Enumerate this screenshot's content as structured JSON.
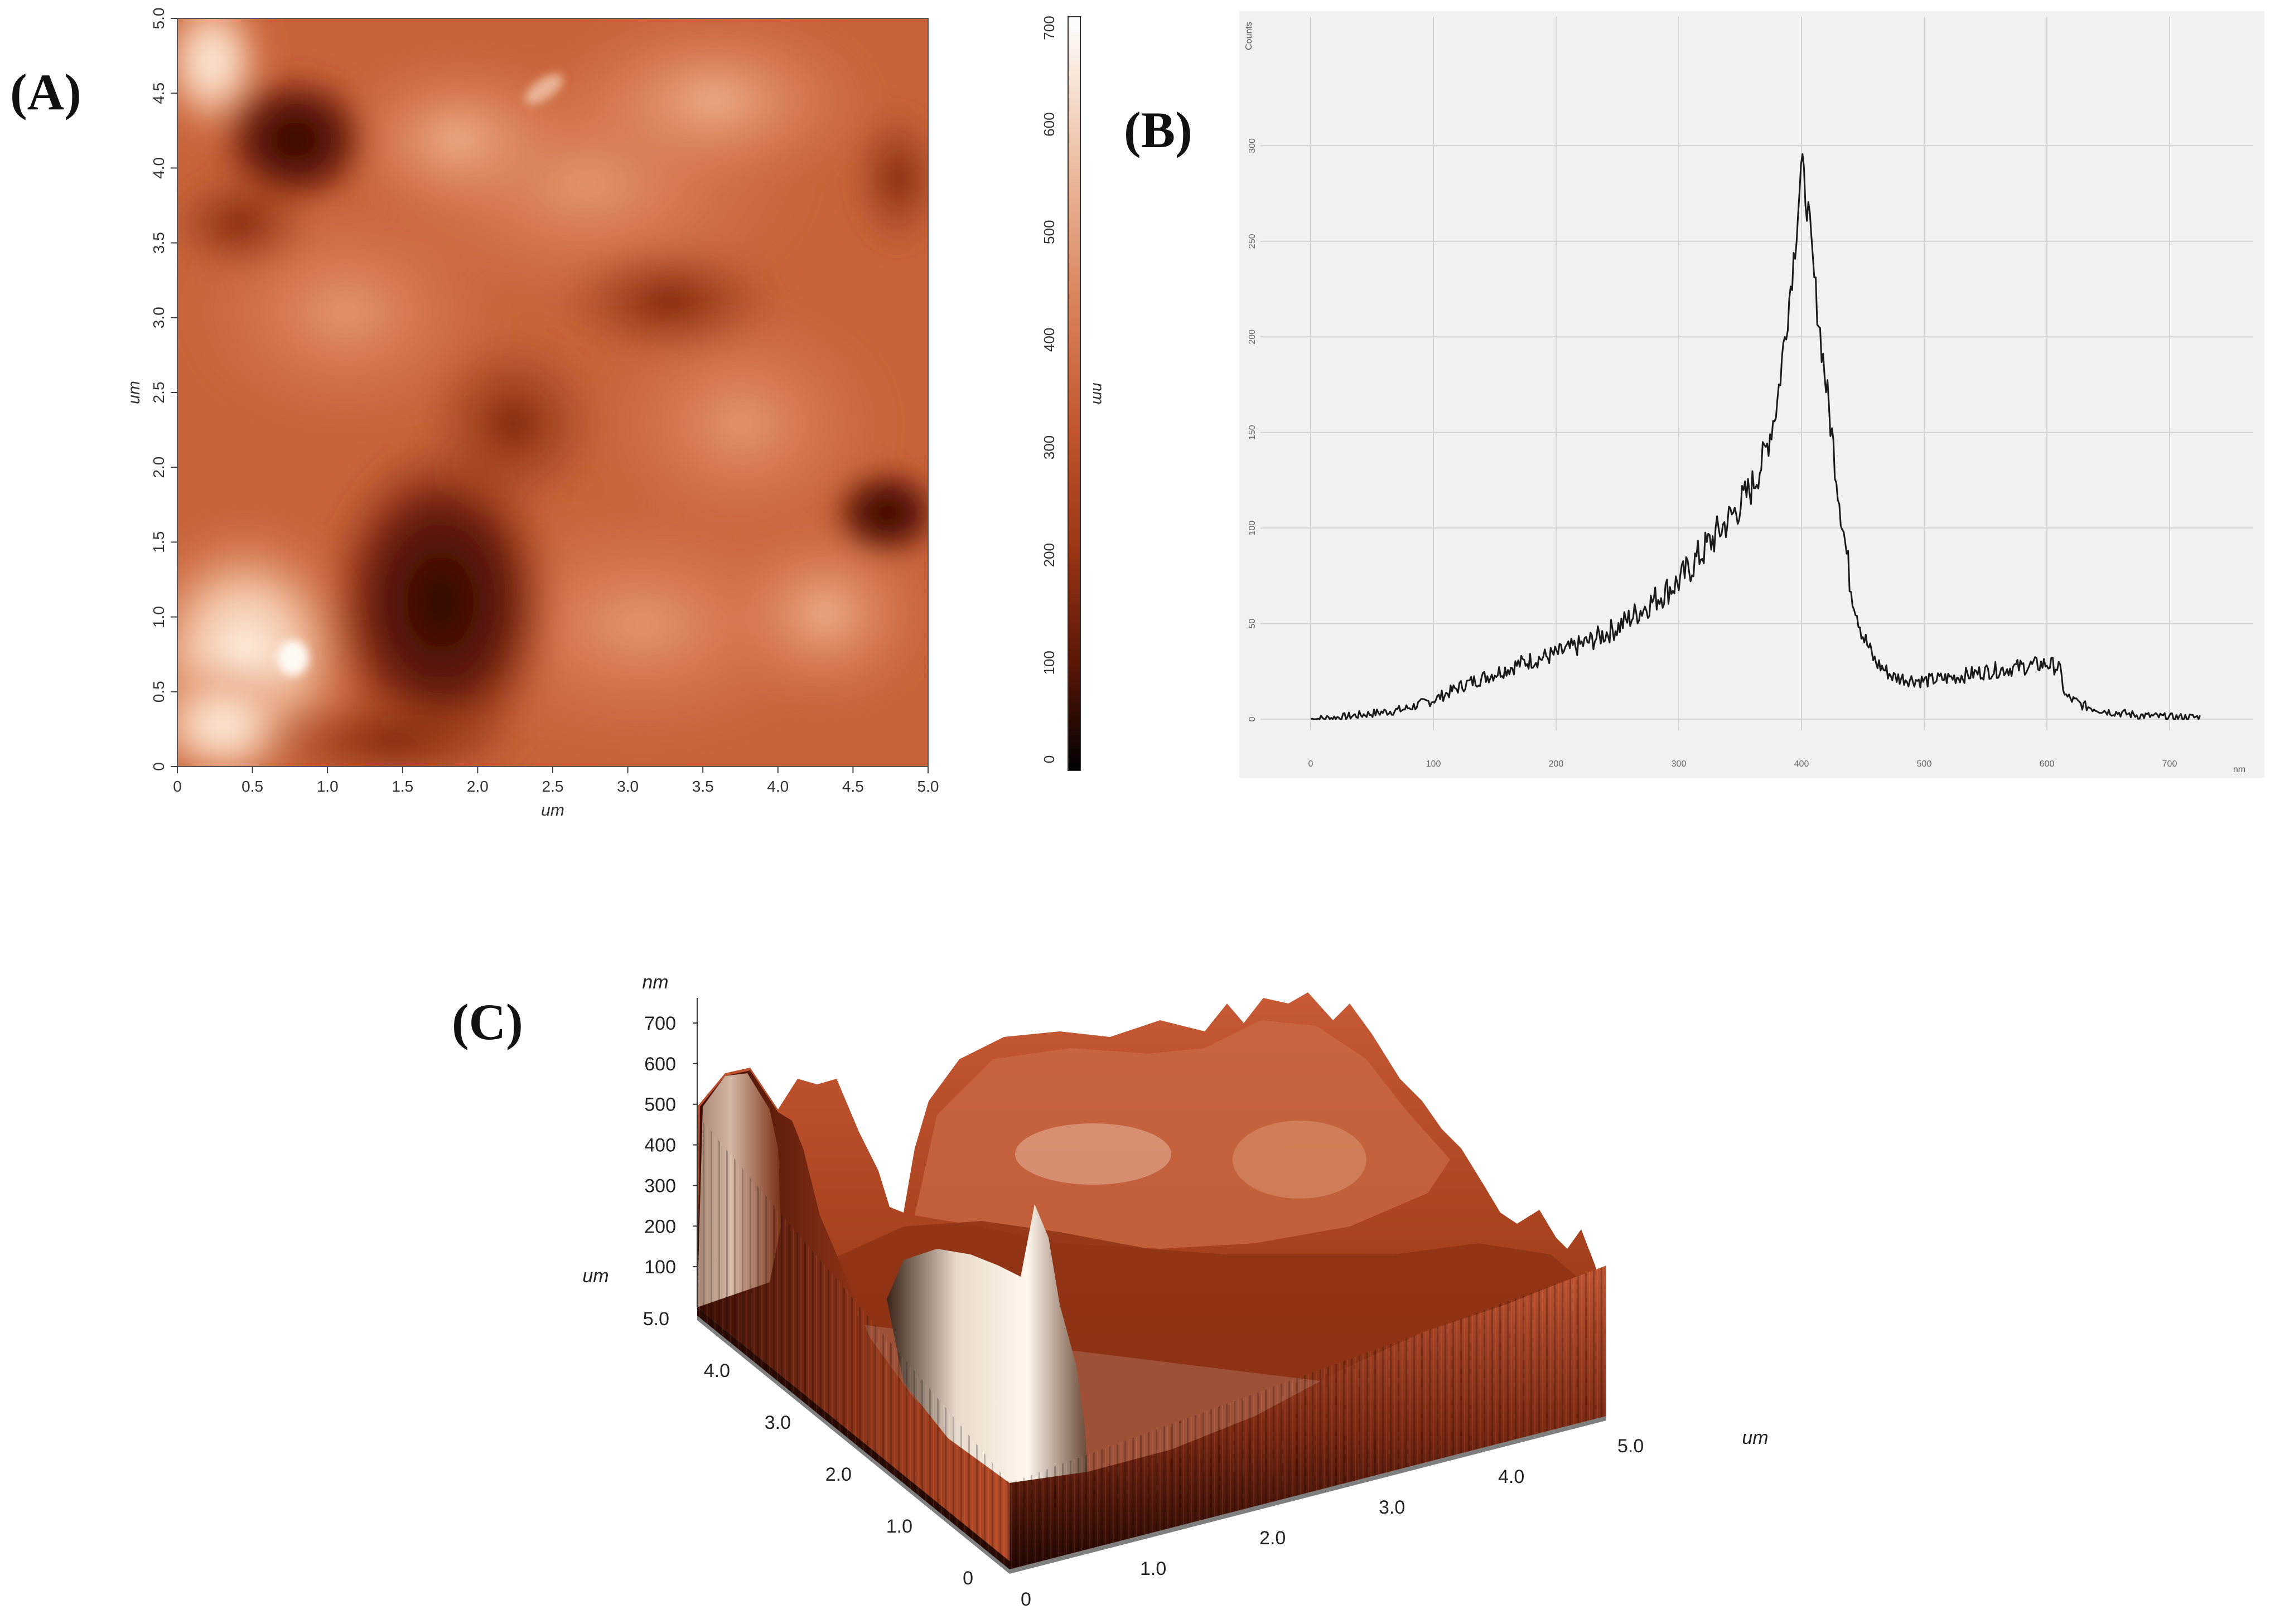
{
  "panels": {
    "a_label": "(A)",
    "b_label": "(B)",
    "c_label": "(C)"
  },
  "chart_data": [
    {
      "type": "heatmap",
      "panel": "A",
      "xlabel": "um",
      "ylabel": "um",
      "xlim": [
        0,
        5.0
      ],
      "ylim": [
        0,
        5.0
      ],
      "x_ticks": [
        "0",
        "0.5",
        "1.0",
        "1.5",
        "2.0",
        "2.5",
        "3.0",
        "3.5",
        "4.0",
        "4.5",
        "5.0"
      ],
      "y_ticks": [
        "0",
        "0.5",
        "1.0",
        "1.5",
        "2.0",
        "2.5",
        "3.0",
        "3.5",
        "4.0",
        "4.5",
        "5.0"
      ],
      "colorbar": {
        "label": "nm",
        "range": [
          0,
          700
        ],
        "ticks": [
          "0",
          "100",
          "200",
          "300",
          "400",
          "500",
          "600",
          "700"
        ],
        "colors": [
          "#000000",
          "#5a1606",
          "#9d3716",
          "#c2552c",
          "#d8825a",
          "#eab597",
          "#f8e6d8",
          "#ffffff"
        ]
      },
      "grid": false
    },
    {
      "type": "line",
      "panel": "B",
      "ylabel": "Counts",
      "xlabel": "nm",
      "xlim": [
        0,
        750
      ],
      "ylim": [
        0,
        350
      ],
      "x_ticks": [
        "0",
        "100",
        "200",
        "300",
        "400",
        "500",
        "600",
        "700"
      ],
      "y_ticks": [
        "0",
        "50",
        "100",
        "150",
        "200",
        "250",
        "300"
      ],
      "grid": true,
      "series": [
        {
          "x": [
            0,
            25,
            50,
            75,
            100,
            125,
            150,
            175,
            200,
            225,
            250,
            275,
            300,
            325,
            350,
            360,
            370,
            380,
            390,
            395,
            400,
            405,
            410,
            420,
            430,
            440,
            450,
            460,
            475,
            500,
            525,
            550,
            600,
            610,
            615,
            630,
            650,
            675,
            700,
            725
          ],
          "y": [
            0,
            1,
            3,
            5,
            10,
            18,
            24,
            30,
            34,
            40,
            48,
            60,
            72,
            92,
            112,
            122,
            138,
            165,
            220,
            250,
            290,
            268,
            232,
            175,
            120,
            70,
            44,
            30,
            22,
            20,
            22,
            25,
            29,
            27,
            12,
            7,
            4,
            2,
            1,
            1
          ]
        }
      ]
    },
    {
      "type": "surface3d",
      "panel": "C",
      "zlabel": "nm",
      "xlabel": "um",
      "ylabel": "um",
      "z_ticks": [
        "100",
        "200",
        "300",
        "400",
        "500",
        "600",
        "700"
      ],
      "x_ticks": [
        "0",
        "1.0",
        "2.0",
        "3.0",
        "4.0",
        "5.0"
      ],
      "y_ticks": [
        "0",
        "1.0",
        "2.0",
        "3.0",
        "4.0",
        "5.0"
      ],
      "xlim": [
        0,
        5.0
      ],
      "ylim": [
        0,
        5.0
      ],
      "zlim": [
        0,
        700
      ]
    }
  ]
}
